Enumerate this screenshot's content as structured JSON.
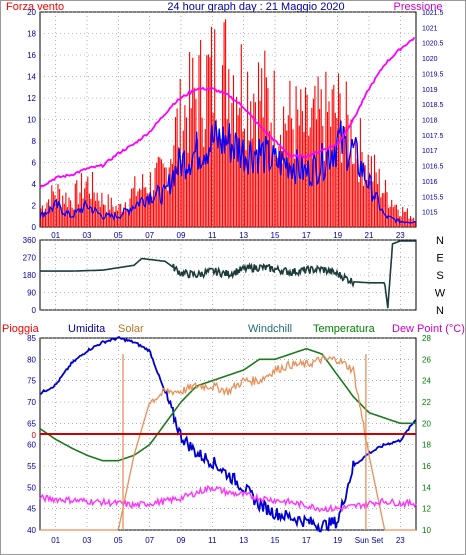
{
  "header": {
    "left_label": "Forza vento",
    "title": "24 hour graph day : 21 Maggio 2020",
    "right_label": "Pressione"
  },
  "x_ticks": [
    "01",
    "03",
    "05",
    "07",
    "09",
    "11",
    "13",
    "15",
    "17",
    "19",
    "21",
    "23"
  ],
  "x_ticks_bottom": [
    "01",
    "03",
    "05",
    "07",
    "09",
    "11",
    "13",
    "15",
    "17",
    "19",
    "Sun Set",
    "23"
  ],
  "colors": {
    "wind_gust": "#ff0000",
    "wind_avg": "#0000ff",
    "pressure": "#ff00ff",
    "direction": "#1e3c3c",
    "humidity": "#0000cc",
    "solar": "#e8905a",
    "temperature": "#1e7a1e",
    "dewpoint": "#ff33ff",
    "rain": "#cc0000",
    "axis_left": "#0000aa",
    "axis_right": "#008000",
    "grid": "#808080"
  },
  "chart_data": [
    {
      "type": "bar",
      "title": "24 hour graph day : 21 Maggio 2020",
      "ylabel": "Forza vento",
      "y2label": "Pressione",
      "ylim": [
        0,
        20
      ],
      "y2lim": [
        1014.5,
        1021.5
      ],
      "y_ticks": [
        0,
        2,
        4,
        6,
        8,
        10,
        12,
        14,
        16,
        18,
        20
      ],
      "y2_ticks": [
        "1015",
        "1015.5",
        "1016",
        "1016.5",
        "1017",
        "1017.5",
        "1018",
        "1018.5",
        "1019",
        "1019.5",
        "1020",
        "1020.5",
        "1021",
        "1021.5"
      ],
      "x": [
        0,
        1,
        2,
        3,
        4,
        5,
        6,
        7,
        8,
        8.5,
        9,
        10,
        11,
        12,
        13,
        14,
        15,
        16,
        17,
        18,
        19,
        20,
        21,
        22,
        23,
        24
      ],
      "series": [
        {
          "name": "Forza vento",
          "kind": "gust",
          "values": [
            2,
            4,
            3,
            5,
            3,
            2,
            4,
            5,
            6,
            10,
            12,
            15,
            17,
            18,
            16,
            15,
            13,
            12,
            11,
            12,
            13,
            10,
            7,
            4,
            2,
            1
          ]
        },
        {
          "name": "Forza vento",
          "kind": "avg",
          "values": [
            1,
            2,
            1,
            2,
            1,
            1,
            2,
            3,
            3,
            5,
            6,
            7,
            8,
            8,
            7,
            7,
            6,
            6,
            5,
            6,
            8,
            7,
            4,
            1,
            0.5,
            0.5
          ]
        },
        {
          "name": "Pressione",
          "values": [
            1015.8,
            1016.1,
            1016.2,
            1016.4,
            1016.5,
            1016.9,
            1017.2,
            1017.6,
            1018.2,
            1018.5,
            1018.7,
            1019.0,
            1019.0,
            1018.8,
            1018.4,
            1017.8,
            1017.3,
            1016.8,
            1016.8,
            1017.0,
            1017.2,
            1018.0,
            1019.0,
            1019.8,
            1020.3,
            1020.7
          ]
        }
      ]
    },
    {
      "type": "line",
      "title": "",
      "ylim": [
        0,
        360
      ],
      "y_ticks": [
        0,
        90,
        180,
        270,
        360
      ],
      "y_tick_labels": [
        "0",
        "90",
        "180",
        "270",
        "360"
      ],
      "right_labels": [
        "N",
        "W",
        "S",
        "E",
        "N"
      ],
      "x": [
        0,
        2,
        4,
        6,
        6.5,
        8,
        9,
        10,
        11,
        12,
        13,
        14,
        15,
        16,
        17,
        18,
        19,
        20,
        21,
        22,
        22.2,
        22.5,
        23,
        24
      ],
      "series": [
        {
          "name": "",
          "values": [
            200,
            200,
            205,
            230,
            265,
            250,
            190,
            180,
            200,
            185,
            210,
            220,
            210,
            195,
            205,
            210,
            185,
            145,
            140,
            140,
            10,
            340,
            355,
            355
          ]
        }
      ]
    },
    {
      "type": "line",
      "title": "",
      "ylabel": "Umidita",
      "y2label": "Dew Point (°C)",
      "ylim": [
        40,
        85
      ],
      "y2lim": [
        10,
        28
      ],
      "y_ticks": [
        40,
        45,
        50,
        55,
        60,
        65,
        70,
        75,
        80,
        85
      ],
      "y2_ticks": [
        10,
        12,
        14,
        16,
        18,
        20,
        22,
        24,
        26,
        28
      ],
      "legend": [
        "Pioggia",
        "Umidita",
        "Solar",
        "Windchill",
        "Temperatura",
        "Dew Point (°C)"
      ],
      "x": [
        0,
        1,
        2,
        3,
        4,
        5,
        6,
        7,
        8,
        9,
        10,
        11,
        12,
        13,
        14,
        15,
        16,
        17,
        18,
        19,
        20,
        21,
        22,
        23,
        24
      ],
      "series": [
        {
          "name": "Umidita",
          "values": [
            72,
            74,
            79,
            82,
            84,
            85,
            84,
            82,
            72,
            62,
            58,
            56,
            53,
            50,
            46,
            44,
            43,
            42,
            41,
            42,
            55,
            58,
            60,
            61,
            66
          ]
        },
        {
          "name": "Temperatura",
          "values": [
            19.5,
            18.5,
            17.7,
            17.0,
            16.5,
            16.5,
            17.0,
            18.0,
            20.0,
            22.0,
            23.5,
            24.0,
            24.5,
            25.0,
            26.0,
            26.0,
            26.5,
            27.0,
            26.5,
            24.5,
            22.5,
            21.0,
            20.5,
            20.0,
            20.0
          ]
        },
        {
          "name": "Windchill",
          "values": [
            19.5,
            18.5,
            17.7,
            17.0,
            16.5,
            16.5,
            17.0,
            18.0,
            20.0,
            22.0,
            23.5,
            24.0,
            24.5,
            25.0,
            26.0,
            26.0,
            26.5,
            27.0,
            26.5,
            24.5,
            22.5,
            21.0,
            20.5,
            20.0,
            20.0
          ]
        },
        {
          "name": "Solar",
          "values": [
            10,
            10,
            10,
            10,
            10,
            10,
            17,
            22,
            23,
            23,
            23.5,
            23.5,
            23,
            24,
            24,
            25,
            25.5,
            25.5,
            26,
            26,
            25,
            17,
            10,
            10,
            10
          ]
        },
        {
          "name": "Dew Point (°C)",
          "values": [
            13.0,
            12.9,
            12.8,
            12.7,
            12.6,
            12.5,
            12.3,
            12.5,
            12.7,
            13.0,
            13.5,
            14.0,
            13.5,
            13.3,
            13.0,
            12.8,
            12.6,
            12.3,
            12.0,
            12.0,
            12.2,
            12.5,
            12.7,
            12.5,
            12.5
          ]
        }
      ],
      "rain_value": 0
    }
  ]
}
